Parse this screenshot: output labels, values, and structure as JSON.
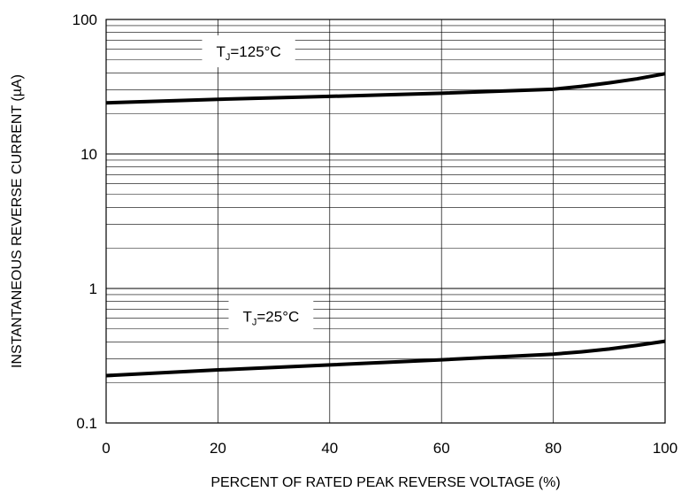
{
  "chart_data": {
    "type": "line",
    "xlabel": "PERCENT OF RATED PEAK REVERSE VOLTAGE (%)",
    "ylabel": "INSTANTANEOUS REVERSE CURRENT (µA)",
    "xlim": [
      0,
      100
    ],
    "ylim": [
      0.1,
      100
    ],
    "yscale": "log",
    "grid": true,
    "x_ticks": [
      "0",
      "20",
      "40",
      "60",
      "80",
      "100"
    ],
    "y_ticks": [
      "0.1",
      "1",
      "10",
      "100"
    ],
    "series": [
      {
        "x": [
          0,
          20,
          40,
          60,
          80,
          85,
          90,
          95,
          100
        ],
        "y": [
          24,
          25.5,
          26.8,
          28.3,
          30.3,
          31.8,
          33.8,
          36.2,
          39.5
        ]
      },
      {
        "x": [
          0,
          20,
          40,
          60,
          80,
          85,
          90,
          95,
          100
        ],
        "y": [
          0.225,
          0.248,
          0.27,
          0.295,
          0.325,
          0.338,
          0.355,
          0.378,
          0.405
        ]
      }
    ],
    "annotations": [
      {
        "main": "T",
        "sub": "J",
        "rest": "=125°C",
        "x": 16,
        "y": 58,
        "near_series": 0
      },
      {
        "main": "T",
        "sub": "J",
        "rest": "=25°C",
        "x": 20,
        "y": 0.62,
        "near_series": 1
      }
    ]
  }
}
